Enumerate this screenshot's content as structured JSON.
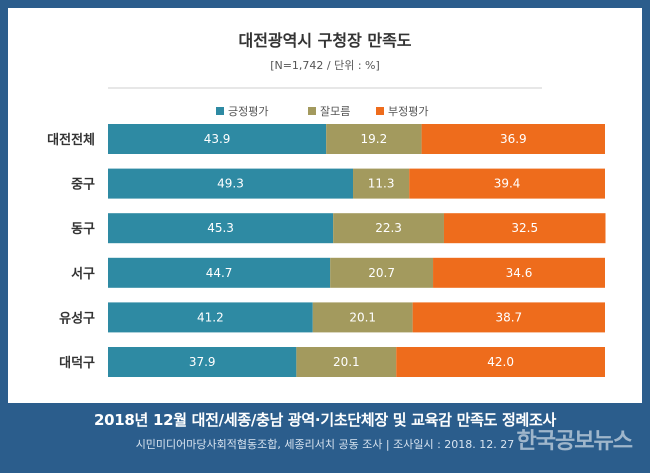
{
  "chart_data": {
    "type": "bar",
    "orientation": "horizontal",
    "stacked": true,
    "title": "대전광역시 구청장 만족도",
    "subtitle": "[N=1,742 / 단위 : %]",
    "categories": [
      "대전전체",
      "중구",
      "동구",
      "서구",
      "유성구",
      "대덕구"
    ],
    "series": [
      {
        "name": "긍정평가",
        "color": "#2e8aa3",
        "values": [
          43.9,
          49.3,
          45.3,
          44.7,
          41.2,
          37.9
        ]
      },
      {
        "name": "잘모름",
        "color": "#a39a5e",
        "values": [
          19.2,
          11.3,
          22.3,
          20.7,
          20.1,
          20.1
        ]
      },
      {
        "name": "부정평가",
        "color": "#ee6c1c",
        "values": [
          36.9,
          39.4,
          32.5,
          34.6,
          38.7,
          42.0
        ]
      }
    ],
    "value_labels": [
      [
        "43.9",
        "49.3",
        "45.3",
        "44.7",
        "41.2",
        "37.9"
      ],
      [
        "19.2",
        "11.3",
        "22.3",
        "20.7",
        "20.1",
        "20.1"
      ],
      [
        "36.9",
        "39.4",
        "32.5",
        "34.6",
        "38.7",
        "42.0"
      ]
    ],
    "xlim": [
      0,
      100
    ],
    "legend": "top-center",
    "grid": false
  },
  "footer": {
    "title": "2018년 12월 대전/세종/충남 광역·기초단체장 및 교육감 만족도 정례조사",
    "subtitle": "시민미디어마당사회적협동조합, 세종리서치 공동 조사 | 조사일시 : 2018. 12. 27",
    "watermark": "한국공보뉴스"
  }
}
